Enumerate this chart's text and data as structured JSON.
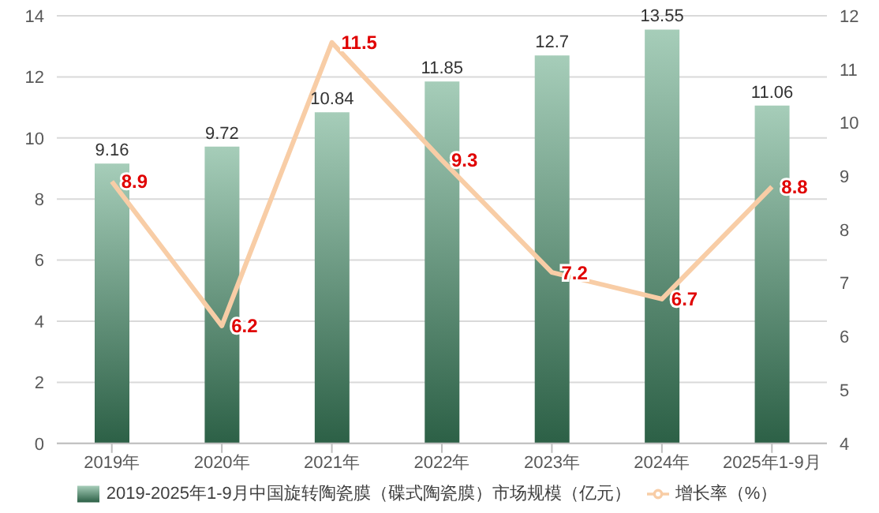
{
  "chart_data": {
    "type": "bar",
    "categories": [
      "2019年",
      "2020年",
      "2021年",
      "2022年",
      "2023年",
      "2024年",
      "2025年1-9月"
    ],
    "series": [
      {
        "name": "2019-2025年1-9月中国旋转陶瓷膜（碟式陶瓷膜）市场规模（亿元）",
        "color": "#3f9f6e",
        "values": [
          9.16,
          9.72,
          10.84,
          11.85,
          12.7,
          13.55,
          11.06
        ]
      },
      {
        "name": "增长率（%）",
        "type": "line",
        "axis": "y2",
        "color": "#f8cda6",
        "values": [
          8.9,
          6.2,
          11.5,
          9.3,
          7.2,
          6.7,
          8.8
        ]
      }
    ],
    "ylim": [
      0,
      14
    ],
    "yticks": [
      0,
      2,
      4,
      6,
      8,
      10,
      12,
      14
    ],
    "y2lim": [
      4,
      12
    ],
    "y2ticks": [
      4,
      5,
      6,
      7,
      8,
      9,
      10,
      11,
      12
    ],
    "grid": "y",
    "legend": "bottom",
    "marker": "none",
    "line_style": "solid",
    "data_labels": true
  }
}
